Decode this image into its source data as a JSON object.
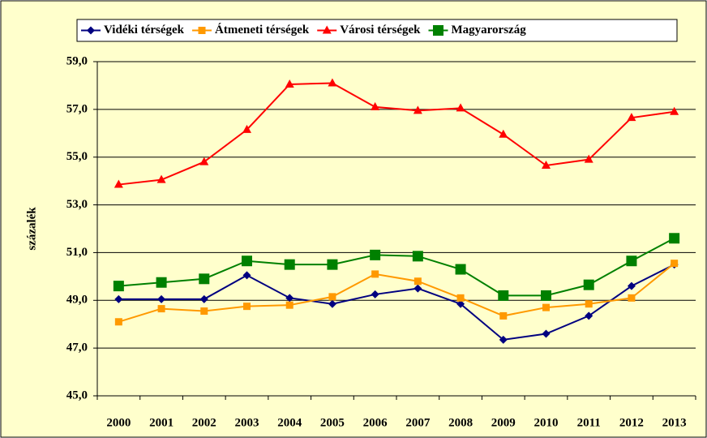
{
  "chart_data": {
    "type": "line",
    "y_label": "százalék",
    "categories": [
      "2000",
      "2001",
      "2002",
      "2003",
      "2004",
      "2005",
      "2006",
      "2007",
      "2008",
      "2009",
      "2010",
      "2011",
      "2012",
      "2013"
    ],
    "series": [
      {
        "name": "Vidéki térségek",
        "color": "#000080",
        "marker": "diamond",
        "values": [
          49.05,
          49.05,
          49.05,
          50.05,
          49.1,
          48.85,
          49.25,
          49.5,
          48.85,
          47.35,
          47.6,
          48.35,
          49.6,
          50.5
        ]
      },
      {
        "name": "Átmeneti térségek",
        "color": "#ff9900",
        "marker": "square",
        "values": [
          48.1,
          48.65,
          48.55,
          48.75,
          48.8,
          49.15,
          50.1,
          49.8,
          49.1,
          48.35,
          48.7,
          48.85,
          49.1,
          50.55
        ]
      },
      {
        "name": "Városi térségek",
        "color": "#ff0000",
        "marker": "triangle",
        "values": [
          53.85,
          54.05,
          54.8,
          56.15,
          58.05,
          58.1,
          57.1,
          56.95,
          57.05,
          55.95,
          54.65,
          54.9,
          56.65,
          56.9
        ]
      },
      {
        "name": "Magyarország",
        "color": "#008000",
        "marker": "bigsquare",
        "values": [
          49.6,
          49.75,
          49.9,
          50.65,
          50.5,
          50.5,
          50.9,
          50.85,
          50.3,
          49.2,
          49.2,
          49.65,
          50.65,
          51.6
        ]
      }
    ],
    "ylim": [
      45,
      59
    ],
    "yticks": [
      {
        "value": 45,
        "label": "45,0"
      },
      {
        "value": 47,
        "label": "47,0"
      },
      {
        "value": 49,
        "label": "49,0"
      },
      {
        "value": 51,
        "label": "51,0"
      },
      {
        "value": 53,
        "label": "53,0"
      },
      {
        "value": 55,
        "label": "55,0"
      },
      {
        "value": 57,
        "label": "57,0"
      },
      {
        "value": 59,
        "label": "59,0"
      }
    ],
    "grid": true,
    "legend": "top"
  }
}
